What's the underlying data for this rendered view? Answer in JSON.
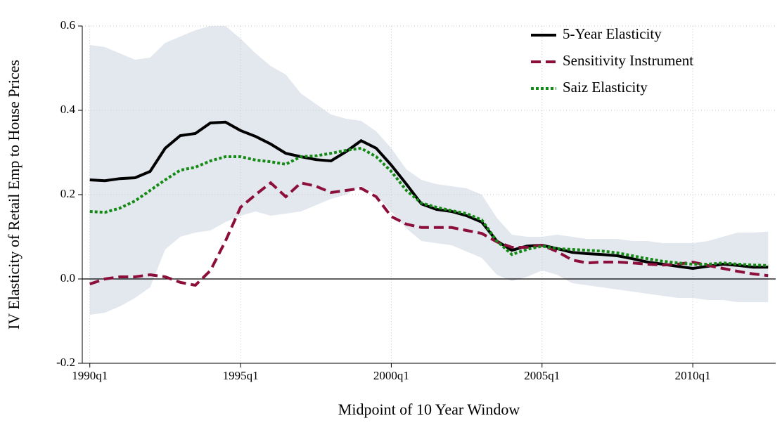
{
  "chart_data": {
    "type": "line",
    "x_label": "Midpoint of 10 Year Window",
    "y_label": "IV Elasticity of Retail Emp to House Prices",
    "x": [
      1990,
      1990.5,
      1991,
      1991.5,
      1992,
      1992.5,
      1993,
      1993.5,
      1994,
      1994.5,
      1995,
      1995.5,
      1996,
      1996.5,
      1997,
      1997.5,
      1998,
      1998.5,
      1999,
      1999.5,
      2000,
      2000.5,
      2001,
      2001.5,
      2002,
      2002.5,
      2003,
      2003.5,
      2004,
      2004.5,
      2005,
      2005.5,
      2006,
      2006.5,
      2007,
      2007.5,
      2008,
      2008.5,
      2009,
      2009.5,
      2010,
      2010.5,
      2011,
      2011.5,
      2012,
      2012.5
    ],
    "band": {
      "color": "#e3e7ee",
      "upper": [
        0.555,
        0.55,
        0.535,
        0.52,
        0.525,
        0.56,
        0.575,
        0.59,
        0.6,
        0.6,
        0.57,
        0.535,
        0.505,
        0.485,
        0.44,
        0.415,
        0.39,
        0.38,
        0.375,
        0.35,
        0.31,
        0.26,
        0.235,
        0.225,
        0.22,
        0.215,
        0.2,
        0.145,
        0.105,
        0.1,
        0.1,
        0.105,
        0.1,
        0.095,
        0.095,
        0.095,
        0.09,
        0.09,
        0.085,
        0.085,
        0.085,
        0.09,
        0.1,
        0.11,
        0.11,
        0.112
      ],
      "lower": [
        -0.085,
        -0.08,
        -0.065,
        -0.045,
        -0.02,
        0.07,
        0.1,
        0.11,
        0.115,
        0.135,
        0.15,
        0.16,
        0.15,
        0.155,
        0.16,
        0.175,
        0.19,
        0.2,
        0.22,
        0.2,
        0.16,
        0.12,
        0.09,
        0.085,
        0.08,
        0.065,
        0.05,
        0.01,
        -0.005,
        0.005,
        0.02,
        0.01,
        -0.01,
        -0.015,
        -0.02,
        -0.025,
        -0.03,
        -0.035,
        -0.04,
        -0.045,
        -0.045,
        -0.05,
        -0.05,
        -0.055,
        -0.055,
        -0.055
      ]
    },
    "series": [
      {
        "name": "5-Year Elasticity",
        "color": "#000000",
        "dash": "solid",
        "values": [
          0.235,
          0.233,
          0.238,
          0.24,
          0.255,
          0.31,
          0.34,
          0.345,
          0.37,
          0.372,
          0.352,
          0.338,
          0.32,
          0.298,
          0.29,
          0.283,
          0.28,
          0.302,
          0.328,
          0.31,
          0.27,
          0.225,
          0.178,
          0.165,
          0.16,
          0.15,
          0.135,
          0.09,
          0.068,
          0.078,
          0.08,
          0.072,
          0.063,
          0.06,
          0.058,
          0.055,
          0.048,
          0.04,
          0.035,
          0.03,
          0.025,
          0.03,
          0.035,
          0.032,
          0.028,
          0.028
        ]
      },
      {
        "name": "Sensitivity Instrument",
        "color": "#8b0f3a",
        "dash": "dashed",
        "values": [
          -0.012,
          0.0,
          0.005,
          0.005,
          0.01,
          0.005,
          -0.008,
          -0.015,
          0.02,
          0.09,
          0.17,
          0.2,
          0.228,
          0.195,
          0.228,
          0.22,
          0.205,
          0.21,
          0.215,
          0.195,
          0.148,
          0.13,
          0.122,
          0.122,
          0.122,
          0.115,
          0.108,
          0.088,
          0.075,
          0.075,
          0.08,
          0.065,
          0.045,
          0.038,
          0.04,
          0.04,
          0.038,
          0.035,
          0.033,
          0.035,
          0.04,
          0.032,
          0.025,
          0.018,
          0.012,
          0.008
        ]
      },
      {
        "name": "Saiz Elasticity",
        "color": "#138a13",
        "dash": "dotted",
        "values": [
          0.16,
          0.158,
          0.168,
          0.185,
          0.21,
          0.235,
          0.258,
          0.265,
          0.28,
          0.29,
          0.29,
          0.282,
          0.278,
          0.272,
          0.29,
          0.292,
          0.298,
          0.305,
          0.31,
          0.29,
          0.255,
          0.21,
          0.18,
          0.17,
          0.162,
          0.155,
          0.14,
          0.09,
          0.058,
          0.07,
          0.078,
          0.072,
          0.07,
          0.068,
          0.066,
          0.062,
          0.055,
          0.048,
          0.042,
          0.038,
          0.035,
          0.035,
          0.038,
          0.035,
          0.033,
          0.032
        ]
      }
    ],
    "xlim": [
      1989.75,
      2012.75
    ],
    "xticks": [
      {
        "value": 1990,
        "label": "1990q1"
      },
      {
        "value": 1995,
        "label": "1995q1"
      },
      {
        "value": 2000,
        "label": "2000q1"
      },
      {
        "value": 2005,
        "label": "2005q1"
      },
      {
        "value": 2010,
        "label": "2010q1"
      }
    ],
    "ylim": [
      -0.2,
      0.6
    ],
    "yticks": [
      -0.2,
      {
        "value": 0,
        "label": "0.0"
      },
      0.2,
      0.4,
      0.6
    ],
    "grid": true,
    "zero_line": true,
    "legend": "top-right"
  }
}
